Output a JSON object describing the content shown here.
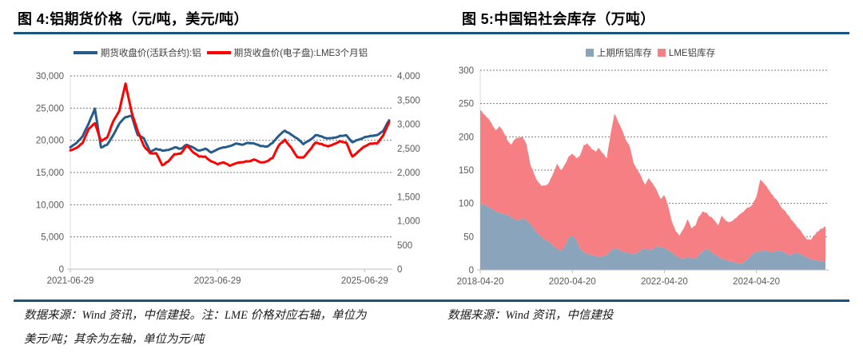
{
  "colors": {
    "rule_navy": "#1A5480",
    "price_blue": "#265C8C",
    "price_red": "#FF0000",
    "shfe_area": "#8AA4BB",
    "lme_area": "#F67F83",
    "tick_text": "#595959",
    "grid": "#7A7A7A",
    "axis": "#BFBFBF",
    "edge": "#DCDCDC"
  },
  "figure4": {
    "title": "图 4:铝期货价格（元/吨，美元/吨）",
    "legend": [
      {
        "label": "期货收盘价(活跃合约):铝",
        "color": "#265C8C"
      },
      {
        "label": "期货收盘价(电子盘):LME3个月铝",
        "color": "#FF0000"
      }
    ],
    "source_line1": "数据来源：Wind 资讯，中信建投。注：LME 价格对应右轴，单位为",
    "source_line2": "美元/吨；其余为左轴，单位为元/吨"
  },
  "figure5": {
    "title": "图 5:中国铝社会库存（万吨）",
    "legend": [
      {
        "label": "上期所铝库存",
        "color": "#8AA4BB"
      },
      {
        "label": "LME铝库存",
        "color": "#F67F83"
      }
    ],
    "source": "数据来源：Wind 资讯，中信建投"
  },
  "chart_data": [
    {
      "type": "line",
      "title": "图 4:铝期货价格（元/吨，美元/吨）",
      "x_start": "2021-06",
      "x_end": "2025-10",
      "x_unit": "month",
      "x_ticks": [
        "2021-06-29",
        "2023-06-29",
        "2025-06-29"
      ],
      "x_tick_months": [
        0,
        24,
        48
      ],
      "grid": "dashed-horizontal",
      "legend_position": "top",
      "left_axis": {
        "unit": "元/吨",
        "range": [
          0,
          30000
        ],
        "ticks": [
          "30,000",
          "25,000",
          "20,000",
          "15,000",
          "10,000",
          "5,000",
          "0"
        ],
        "tick_values": [
          30000,
          25000,
          20000,
          15000,
          10000,
          5000,
          0
        ]
      },
      "right_axis": {
        "unit": "美元/吨",
        "range": [
          0,
          4000
        ],
        "ticks": [
          "4,000",
          "3,500",
          "3,000",
          "2,500",
          "2,000",
          "1,500",
          "1,000",
          "500",
          "0"
        ],
        "tick_values": [
          4000,
          3500,
          3000,
          2500,
          2000,
          1500,
          1000,
          500,
          0
        ]
      },
      "series": [
        {
          "name": "期货收盘价(活跃合约):铝",
          "axis": "left",
          "color": "#265C8C",
          "values": [
            18900,
            19600,
            20600,
            22600,
            24900,
            18900,
            19300,
            20800,
            22600,
            23600,
            23800,
            20800,
            20300,
            18200,
            18700,
            18400,
            18500,
            18900,
            18700,
            19300,
            18900,
            18400,
            18700,
            18100,
            18600,
            18900,
            19100,
            19500,
            19300,
            19600,
            19500,
            19100,
            19000,
            19600,
            20700,
            21500,
            20900,
            20300,
            19400,
            20000,
            20800,
            20600,
            20300,
            20400,
            20700,
            20800,
            19700,
            20100,
            20500,
            20700,
            20800,
            21400,
            23100
          ]
        },
        {
          "name": "期货收盘价(电子盘):LME3个月铝",
          "axis": "right",
          "color": "#FF0000",
          "values": [
            2460,
            2510,
            2610,
            2900,
            3020,
            2650,
            2720,
            3060,
            3280,
            3840,
            3250,
            2850,
            2550,
            2400,
            2400,
            2150,
            2230,
            2380,
            2390,
            2560,
            2420,
            2330,
            2330,
            2230,
            2170,
            2210,
            2140,
            2190,
            2210,
            2230,
            2270,
            2210,
            2230,
            2300,
            2560,
            2680,
            2520,
            2320,
            2310,
            2460,
            2620,
            2590,
            2540,
            2590,
            2650,
            2620,
            2330,
            2440,
            2540,
            2600,
            2600,
            2760,
            3040
          ]
        }
      ]
    },
    {
      "type": "area",
      "stacked": true,
      "title": "图 5:中国铝社会库存（万吨）",
      "x_start": "2018-04",
      "x_end": "2025-10",
      "x_unit": "month",
      "x_ticks": [
        "2018-04-20",
        "2020-04-20",
        "2022-04-20",
        "2024-04-20"
      ],
      "x_tick_months": [
        0,
        24,
        48,
        72
      ],
      "grid": "dashed-horizontal",
      "legend_position": "top",
      "y_axis": {
        "unit": "万吨",
        "range": [
          0,
          300
        ],
        "ticks": [
          "300",
          "250",
          "200",
          "150",
          "100",
          "50",
          "0"
        ],
        "tick_values": [
          300,
          250,
          200,
          150,
          100,
          50,
          0
        ]
      },
      "series": [
        {
          "name": "上期所铝库存",
          "color": "#8AA4BB",
          "values": [
            100,
            98,
            95,
            92,
            88,
            86,
            84,
            83,
            80,
            76,
            74,
            78,
            75,
            70,
            62,
            55,
            50,
            45,
            42,
            36,
            32,
            28,
            35,
            48,
            52,
            45,
            33,
            27,
            24,
            22,
            21,
            20,
            21,
            22,
            28,
            33,
            31,
            28,
            26,
            25,
            24,
            26,
            30,
            32,
            30,
            31,
            36,
            34,
            33,
            30,
            26,
            21,
            18,
            17,
            20,
            18,
            17,
            22,
            28,
            32,
            28,
            24,
            20,
            17,
            15,
            13,
            12,
            10,
            9,
            12,
            18,
            24,
            27,
            28,
            29,
            28,
            27,
            28,
            29,
            27,
            24,
            22,
            26,
            25,
            22,
            19,
            17,
            15,
            14,
            13,
            14
          ]
        },
        {
          "name": "LME铝库存",
          "color": "#F67F83",
          "values": [
            140,
            136,
            133,
            128,
            122,
            130,
            124,
            113,
            108,
            120,
            125,
            122,
            115,
            90,
            83,
            78,
            76,
            82,
            90,
            109,
            128,
            122,
            123,
            122,
            123,
            123,
            139,
            161,
            166,
            160,
            157,
            163,
            154,
            146,
            177,
            202,
            191,
            182,
            169,
            160,
            136,
            124,
            110,
            96,
            108,
            99,
            84,
            73,
            79,
            66,
            46,
            37,
            34,
            45,
            56,
            45,
            49,
            58,
            60,
            54,
            52,
            51,
            47,
            65,
            59,
            59,
            63,
            70,
            76,
            78,
            76,
            74,
            83,
            108,
            101,
            94,
            87,
            79,
            70,
            64,
            60,
            54,
            44,
            37,
            33,
            28,
            28,
            37,
            44,
            49,
            51
          ]
        }
      ]
    }
  ]
}
